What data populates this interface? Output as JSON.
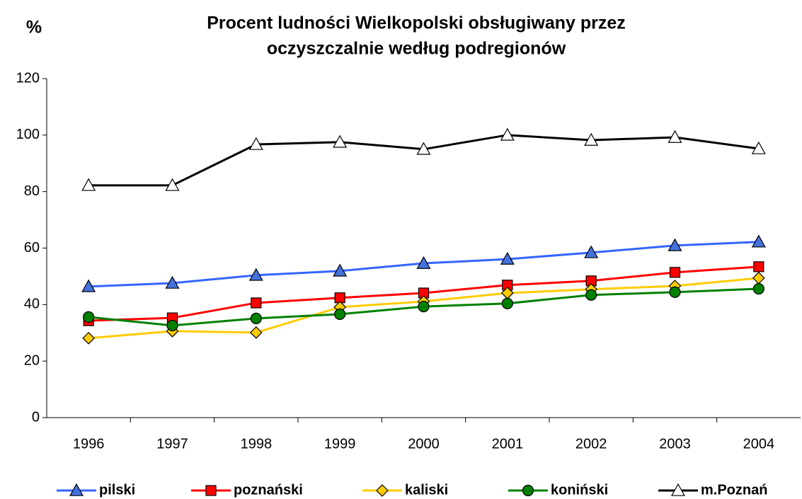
{
  "chart_data": {
    "type": "line",
    "title": [
      "Procent ludności Wielkopolski obsługiwany przez",
      "oczyszczalnie według podregionów"
    ],
    "y_label": "%",
    "categories": [
      "1996",
      "1997",
      "1998",
      "1999",
      "2000",
      "2001",
      "2002",
      "2003",
      "2004"
    ],
    "series": [
      {
        "name": "pilski",
        "color": "#3366ff",
        "marker": "triangle",
        "marker_color": "#4472dc",
        "values": [
          46.4,
          47.6,
          50.4,
          51.9,
          54.6,
          56.1,
          58.4,
          60.9,
          62.2
        ]
      },
      {
        "name": "poznański",
        "color": "#ff0000",
        "marker": "square",
        "marker_color": "#ff0000",
        "values": [
          34.3,
          35.3,
          40.6,
          42.4,
          44.1,
          46.9,
          48.4,
          51.4,
          53.4
        ]
      },
      {
        "name": "kaliski",
        "color": "#ffcc00",
        "marker": "diamond",
        "marker_color": "#ffcc00",
        "values": [
          28.1,
          30.6,
          30.1,
          39.1,
          41.1,
          44.1,
          45.4,
          46.6,
          49.4
        ]
      },
      {
        "name": "koniński",
        "color": "#008000",
        "marker": "circle",
        "marker_color": "#008000",
        "values": [
          35.6,
          32.6,
          35.1,
          36.6,
          39.3,
          40.4,
          43.4,
          44.4,
          45.6
        ]
      },
      {
        "name": "m.Poznań",
        "color": "#000000",
        "marker": "triangle",
        "marker_color": "#ffffff",
        "values": [
          82.2,
          82.2,
          96.7,
          97.5,
          95,
          100,
          98.2,
          99.2,
          95.2
        ]
      }
    ],
    "ylim": [
      0,
      120
    ],
    "yticks": [
      0,
      20,
      40,
      60,
      80,
      100,
      120
    ],
    "grid": false,
    "legend": "bottom"
  }
}
